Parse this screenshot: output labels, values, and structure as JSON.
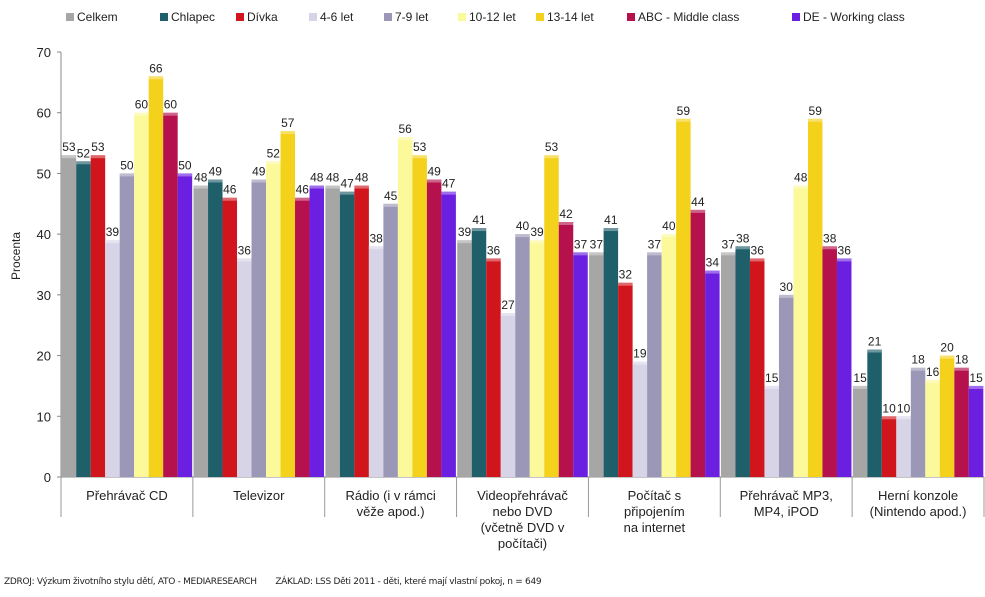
{
  "chart_data": {
    "type": "bar",
    "ylabel": "Procenta",
    "ylim": [
      0,
      70
    ],
    "yticks": [
      0,
      10,
      20,
      30,
      40,
      50,
      60,
      70
    ],
    "grid": false,
    "legend_position": "top",
    "categories": [
      [
        "Přehrávač CD"
      ],
      [
        "Televizor"
      ],
      [
        "Rádio (i v rámci",
        "věže apod.)"
      ],
      [
        "Videopřehrávač",
        "nebo DVD",
        "(včetně DVD v",
        "počítači)"
      ],
      [
        "Počítač s",
        "připojením",
        "na internet"
      ],
      [
        "Přehrávač MP3,",
        "MP4, iPOD"
      ],
      [
        "Herní konzole",
        "(Nintendo apod.)"
      ]
    ],
    "series": [
      {
        "name": "Celkem",
        "color": "#a6a6a6",
        "values": [
          53,
          48,
          48,
          39,
          37,
          37,
          15
        ]
      },
      {
        "name": "Chlapec",
        "color": "#1f5f6a",
        "values": [
          52,
          49,
          47,
          41,
          41,
          38,
          21
        ]
      },
      {
        "name": "Dívka",
        "color": "#d0161c",
        "values": [
          53,
          46,
          48,
          36,
          32,
          36,
          10
        ]
      },
      {
        "name": "4-6 let",
        "color": "#d7d4e8",
        "values": [
          39,
          36,
          38,
          27,
          19,
          15,
          10
        ]
      },
      {
        "name": "7-9 let",
        "color": "#9b97b6",
        "values": [
          50,
          49,
          45,
          40,
          37,
          30,
          18
        ]
      },
      {
        "name": "10-12 let",
        "color": "#fbf99a",
        "values": [
          60,
          52,
          56,
          39,
          40,
          48,
          16
        ]
      },
      {
        "name": "13-14 let",
        "color": "#f4d21c",
        "values": [
          66,
          57,
          53,
          53,
          59,
          59,
          20
        ]
      },
      {
        "name": "ABC - Middle class",
        "color": "#b5114d",
        "values": [
          60,
          46,
          49,
          42,
          44,
          38,
          18
        ]
      },
      {
        "name": "DE - Working class",
        "color": "#6b1fe0",
        "values": [
          50,
          48,
          47,
          37,
          34,
          36,
          15
        ]
      }
    ]
  },
  "footer": {
    "source": "ZDROJ: Výzkum životního stylu dětí, ATO - MEDIARESEARCH",
    "base": "ZÁKLAD: LSS Děti 2011 - děti, které mají vlastní pokoj, n = 649"
  }
}
